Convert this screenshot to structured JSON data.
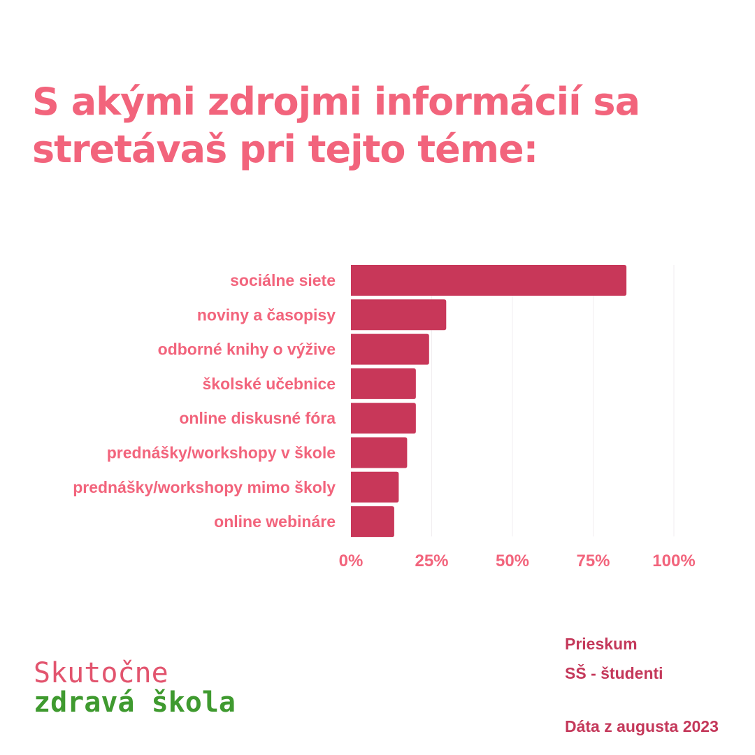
{
  "title_line1": "S akými zdrojmi informácií sa",
  "title_line2": "stretávaš pri tejto téme:",
  "colors": {
    "title": "#f2647c",
    "bar": "#c83759",
    "label": "#f2647c",
    "note": "#c4385a",
    "logo_top": "#e2546e",
    "logo_bottom": "#3f9a2f"
  },
  "chart_data": {
    "type": "bar",
    "orientation": "horizontal",
    "categories": [
      "sociálne siete",
      "noviny a časopisy",
      "odborné knihy o výžive",
      "školské učebnice",
      "online diskusné fóra",
      "prednášky/workshopy v škole",
      "prednášky/workshopy mimo školy",
      "online webináre"
    ],
    "values": [
      85.3,
      29.5,
      24.2,
      20.1,
      20.1,
      17.4,
      14.8,
      13.4
    ],
    "xlim": [
      0,
      100
    ],
    "xticks": [
      "0%",
      "25%",
      "50%",
      "75%",
      "100%"
    ],
    "grid": true
  },
  "footer": {
    "logo_line1": "Skutočne",
    "logo_line2": "zdravá škola",
    "note_line1": "Prieskum",
    "note_line2": "SŠ - študenti",
    "note_line3": "Dáta z augusta 2023"
  }
}
